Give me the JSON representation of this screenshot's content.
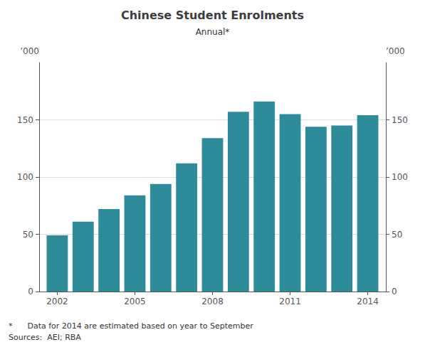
{
  "chart_data": {
    "type": "bar",
    "title": "Chinese Student Enrolments",
    "subtitle": "Annual*",
    "ylabel": "’000",
    "y2label": "’000",
    "x": [
      2002,
      2003,
      2004,
      2005,
      2006,
      2007,
      2008,
      2009,
      2010,
      2011,
      2012,
      2013,
      2014
    ],
    "values": [
      49,
      61,
      72,
      84,
      94,
      112,
      134,
      157,
      166,
      155,
      144,
      145,
      154
    ],
    "color": "#2E8B9A",
    "xlim": [
      2001.3,
      2014.7
    ],
    "xticks": [
      2002,
      2005,
      2008,
      2011,
      2014
    ],
    "ylim": [
      0,
      200
    ],
    "yticks": [
      0,
      50,
      100,
      150
    ],
    "y2lim": [
      0,
      200
    ],
    "y2ticks": [
      0,
      50,
      100,
      150
    ],
    "grid": true,
    "annotations": [
      "*      Data for 2014 are estimated based on year to September",
      "Sources:  AEI; RBA"
    ]
  }
}
